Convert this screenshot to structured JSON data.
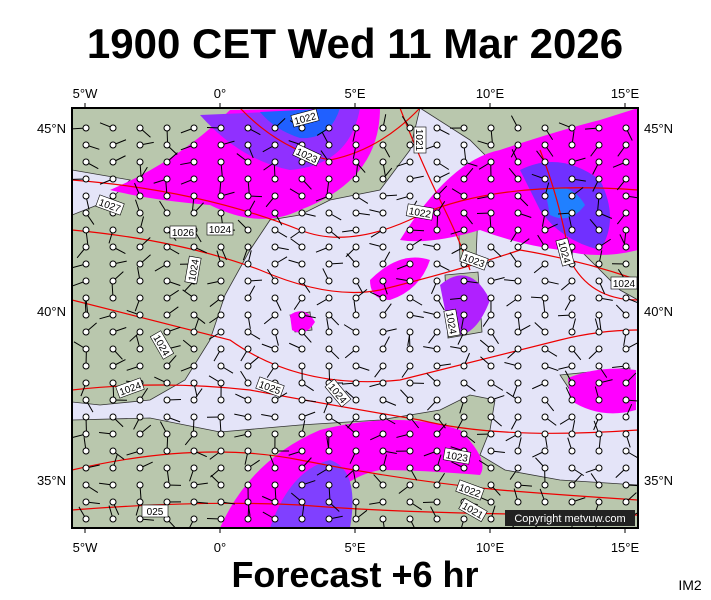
{
  "header": {
    "title": "1900 CET Wed 11 Mar 2026"
  },
  "map": {
    "lon_labels": [
      "5°W",
      "0°",
      "5°E",
      "10°E",
      "15°E"
    ],
    "lat_labels": [
      "45°N",
      "40°N",
      "35°N"
    ],
    "isobar_labels": [
      "1022",
      "1023",
      "1021",
      "1027",
      "1026",
      "1024",
      "1024",
      "1024",
      "1024",
      "1025",
      "1024",
      "1022",
      "1023",
      "1024",
      "1024",
      "1024",
      "1023",
      "1022",
      "1021",
      "025"
    ],
    "copyright": "Copyright metvuw.com"
  },
  "footer": {
    "forecast": "Forecast +6 hr",
    "image_id": "IM2"
  }
}
